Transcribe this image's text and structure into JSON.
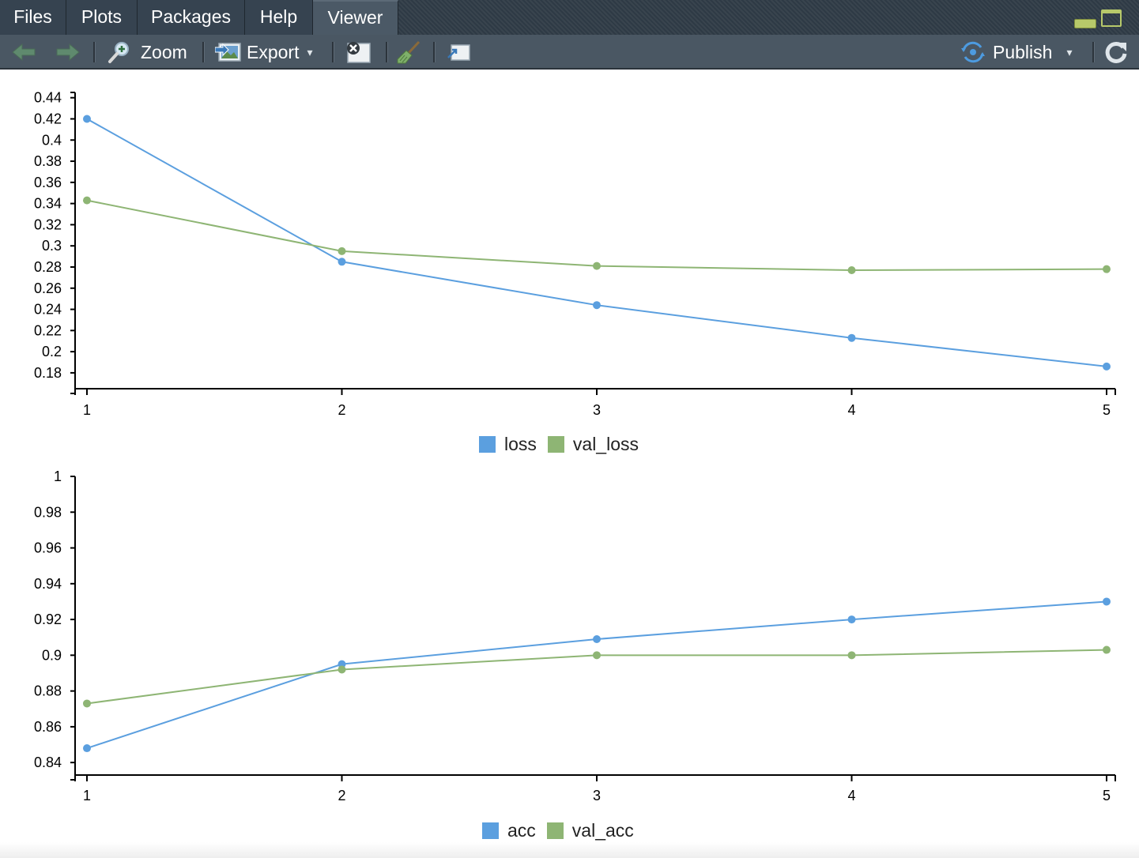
{
  "tabs": [
    {
      "label": "Files",
      "active": false
    },
    {
      "label": "Plots",
      "active": false
    },
    {
      "label": "Packages",
      "active": false
    },
    {
      "label": "Help",
      "active": false
    },
    {
      "label": "Viewer",
      "active": true
    }
  ],
  "toolbar": {
    "back_icon": "back-arrow-icon",
    "forward_icon": "forward-arrow-icon",
    "zoom_label": "Zoom",
    "export_label": "Export",
    "clear_icon": "clear-viewer-icon",
    "broom_icon": "broom-icon",
    "popout_icon": "show-in-new-window-icon",
    "publish_label": "Publish",
    "refresh_icon": "refresh-icon"
  },
  "colors": {
    "series_train": "#5b9fdf",
    "series_val": "#8eb574"
  },
  "chart_data": [
    {
      "type": "line",
      "x": [
        1,
        2,
        3,
        4,
        5
      ],
      "xticks": [
        "1",
        "2",
        "3",
        "4",
        "5"
      ],
      "yticks": [
        "0.18",
        "0.2",
        "0.22",
        "0.24",
        "0.26",
        "0.28",
        "0.3",
        "0.32",
        "0.34",
        "0.36",
        "0.38",
        "0.4",
        "0.42",
        "0.44"
      ],
      "ylim": [
        0.165,
        0.445
      ],
      "series": [
        {
          "name": "loss",
          "values": [
            0.42,
            0.285,
            0.244,
            0.213,
            0.186
          ]
        },
        {
          "name": "val_loss",
          "values": [
            0.343,
            0.295,
            0.281,
            0.277,
            0.278
          ]
        }
      ],
      "legend": "bottom-center",
      "grid": false
    },
    {
      "type": "line",
      "x": [
        1,
        2,
        3,
        4,
        5
      ],
      "xticks": [
        "1",
        "2",
        "3",
        "4",
        "5"
      ],
      "yticks": [
        "0.84",
        "0.86",
        "0.88",
        "0.9",
        "0.92",
        "0.94",
        "0.96",
        "0.98",
        "1"
      ],
      "ylim": [
        0.833,
        1.0
      ],
      "series": [
        {
          "name": "acc",
          "values": [
            0.848,
            0.895,
            0.909,
            0.92,
            0.93
          ]
        },
        {
          "name": "val_acc",
          "values": [
            0.873,
            0.892,
            0.9,
            0.9,
            0.903
          ]
        }
      ],
      "legend": "bottom-center",
      "grid": false
    }
  ]
}
